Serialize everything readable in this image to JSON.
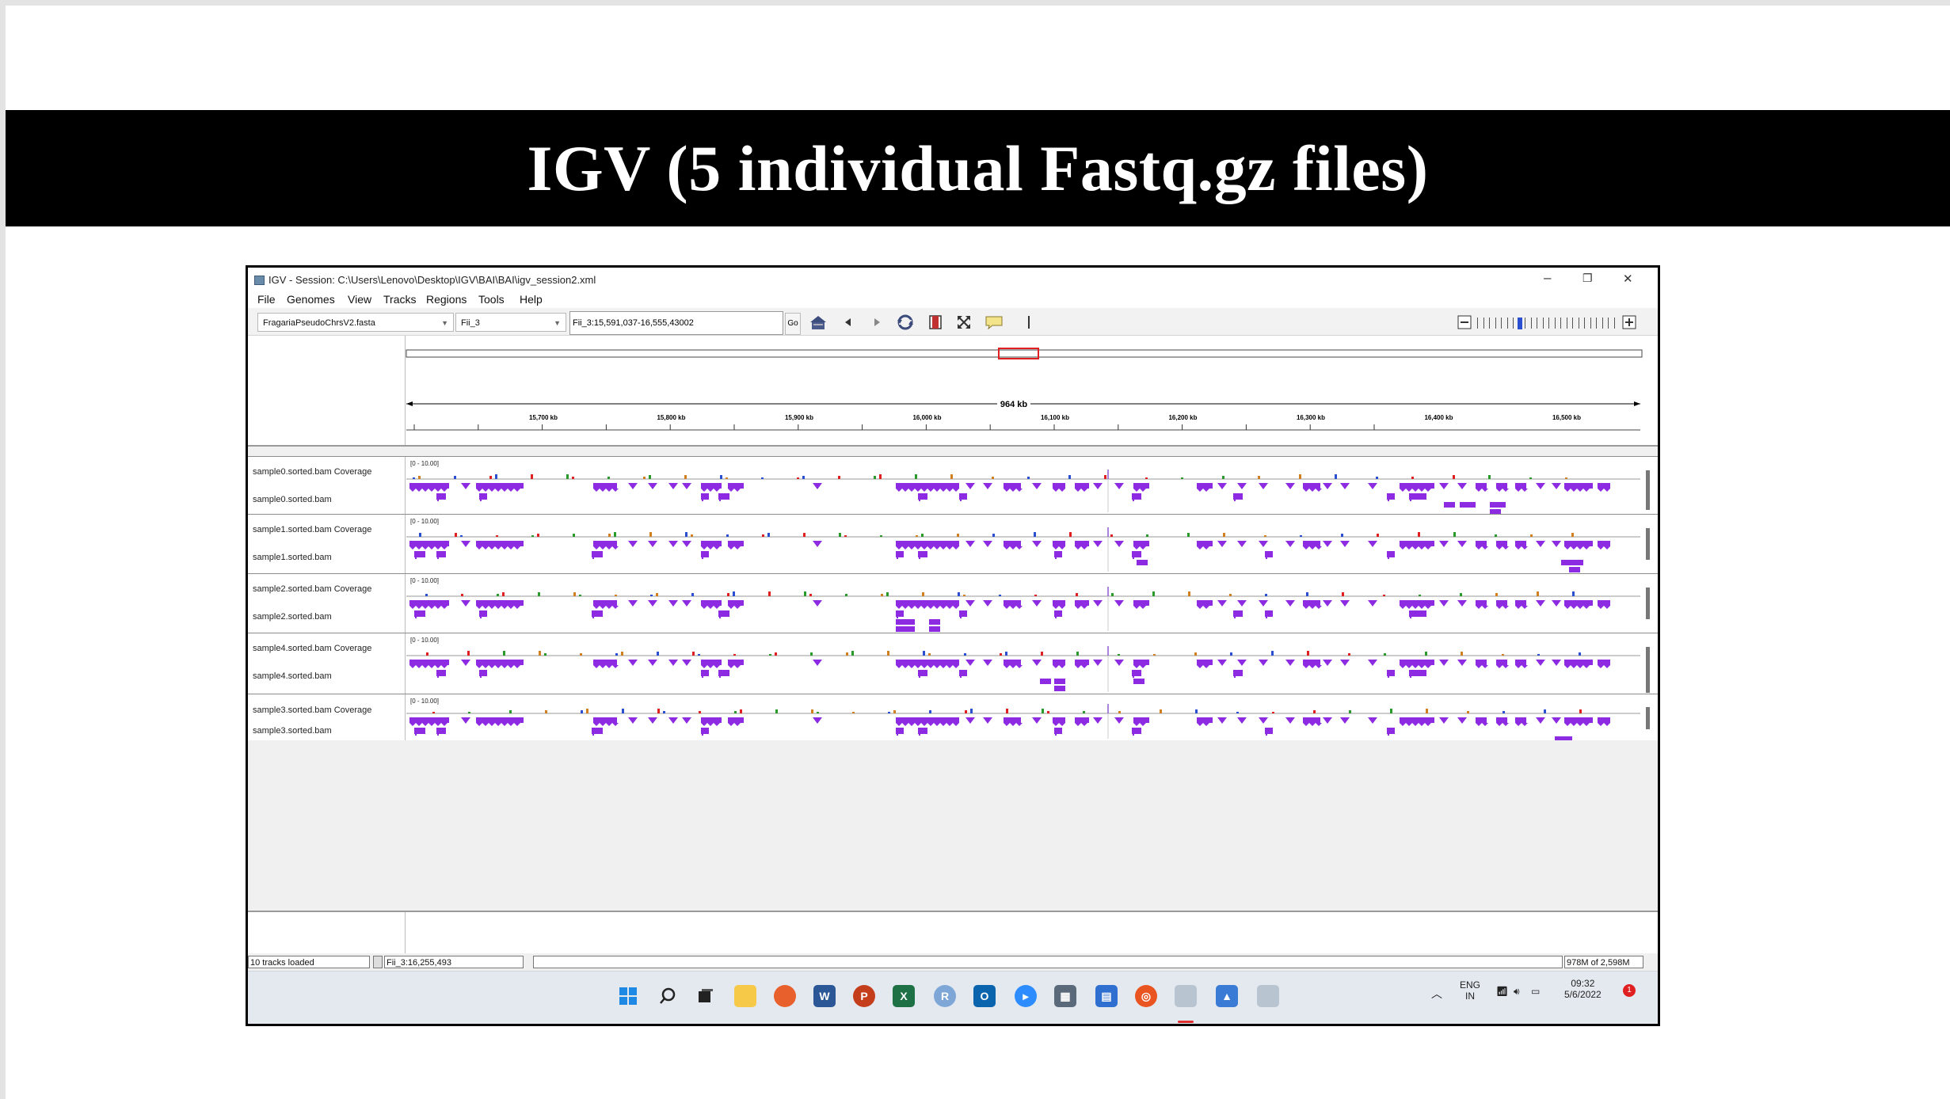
{
  "slide": {
    "title": "IGV (5 individual Fastq.gz files)"
  },
  "window": {
    "title": "IGV - Session: C:\\Users\\Lenovo\\Desktop\\IGV\\BAI\\BAI\\igv_session2.xml",
    "minimize": "–",
    "restore": "❐",
    "close": "✕"
  },
  "menu": [
    "File",
    "Genomes",
    "View",
    "Tracks",
    "Regions",
    "Tools",
    "Help"
  ],
  "toolbar": {
    "genome": "FragariaPseudoChrsV2.fasta",
    "chromosome": "Fii_3",
    "locus": "Fii_3:15,591,037-16,555,43002",
    "go_label": "Go"
  },
  "ruler": {
    "span_label": "964 kb",
    "ticks": [
      "15,700 kb",
      "15,800 kb",
      "15,900 kb",
      "16,000 kb",
      "16,100 kb",
      "16,200 kb",
      "16,300 kb",
      "16,400 kb",
      "16,500 kb"
    ]
  },
  "tracks": [
    {
      "coverage": "sample0.sorted.bam Coverage",
      "bam": "sample0.sorted.bam",
      "range": "[0 - 10.00]"
    },
    {
      "coverage": "sample1.sorted.bam Coverage",
      "bam": "sample1.sorted.bam",
      "range": "[0 - 10.00]"
    },
    {
      "coverage": "sample2.sorted.bam Coverage",
      "bam": "sample2.sorted.bam",
      "range": "[0 - 10.00]"
    },
    {
      "coverage": "sample4.sorted.bam Coverage",
      "bam": "sample4.sorted.bam",
      "range": "[0 - 10.00]"
    },
    {
      "coverage": "sample3.sorted.bam Coverage",
      "bam": "sample3.sorted.bam",
      "range": "[0 - 10.00]"
    }
  ],
  "status": {
    "tracks_loaded": "10 tracks loaded",
    "position": "Fii_3:16,255,493",
    "memory": "978M of 2,598M"
  },
  "taskbar": {
    "lang_top": "ENG",
    "lang_bottom": "IN",
    "time": "09:32",
    "date": "5/6/2022",
    "notification_count": "1",
    "chevron": "︿"
  },
  "colors": {
    "reads": "#8c2be2",
    "title_band": "#000000",
    "roi_box": "#e02020"
  }
}
